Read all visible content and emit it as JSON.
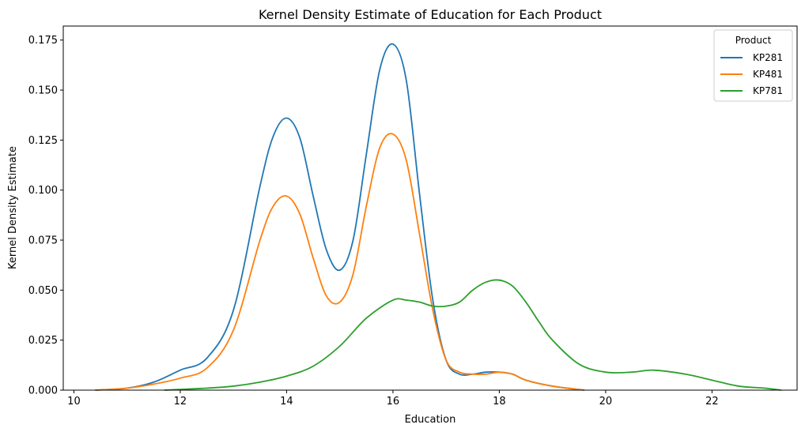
{
  "chart_data": {
    "type": "line",
    "title": "Kernel Density Estimate of Education for Each Product",
    "xlabel": "Education",
    "ylabel": "Kernel Density Estimate",
    "xlim": [
      9.8,
      23.6
    ],
    "ylim": [
      0,
      0.182
    ],
    "xticks": [
      10,
      12,
      14,
      16,
      18,
      20,
      22
    ],
    "xtick_labels": [
      "10",
      "12",
      "14",
      "16",
      "18",
      "20",
      "22"
    ],
    "yticks": [
      0,
      0.025,
      0.05,
      0.075,
      0.1,
      0.125,
      0.15,
      0.175
    ],
    "ytick_labels": [
      "0.000",
      "0.025",
      "0.050",
      "0.075",
      "0.100",
      "0.125",
      "0.150",
      "0.175"
    ],
    "grid": false,
    "legend": {
      "title": "Product",
      "placement": "top-right"
    },
    "series": [
      {
        "name": "KP281",
        "color": "#1f77b4",
        "x": [
          10.4,
          11.0,
          11.5,
          12.0,
          12.5,
          13.0,
          13.5,
          13.75,
          14.0,
          14.25,
          14.5,
          14.75,
          15.0,
          15.25,
          15.5,
          15.75,
          16.0,
          16.25,
          16.5,
          16.75,
          17.0,
          17.25,
          17.5,
          17.75,
          18.0,
          18.25,
          18.5,
          19.0,
          19.6
        ],
        "y": [
          0.0,
          0.001,
          0.004,
          0.01,
          0.016,
          0.04,
          0.102,
          0.127,
          0.136,
          0.126,
          0.097,
          0.07,
          0.06,
          0.075,
          0.118,
          0.16,
          0.173,
          0.155,
          0.098,
          0.045,
          0.015,
          0.008,
          0.008,
          0.009,
          0.009,
          0.008,
          0.005,
          0.002,
          0.0
        ]
      },
      {
        "name": "KP481",
        "color": "#ff7f0e",
        "x": [
          10.4,
          11.0,
          11.5,
          12.0,
          12.5,
          13.0,
          13.5,
          13.75,
          14.0,
          14.25,
          14.5,
          14.75,
          15.0,
          15.25,
          15.5,
          15.75,
          16.0,
          16.25,
          16.5,
          16.75,
          17.0,
          17.25,
          17.5,
          17.75,
          18.0,
          18.25,
          18.5,
          19.0,
          19.6
        ],
        "y": [
          0.0,
          0.001,
          0.003,
          0.006,
          0.011,
          0.03,
          0.075,
          0.092,
          0.097,
          0.088,
          0.066,
          0.047,
          0.044,
          0.058,
          0.092,
          0.121,
          0.128,
          0.115,
          0.078,
          0.04,
          0.015,
          0.009,
          0.008,
          0.008,
          0.009,
          0.008,
          0.005,
          0.002,
          0.0
        ]
      },
      {
        "name": "KP781",
        "color": "#2ca02c",
        "x": [
          11.7,
          12.5,
          13.0,
          13.5,
          14.0,
          14.5,
          15.0,
          15.5,
          16.0,
          16.25,
          16.5,
          16.75,
          17.0,
          17.25,
          17.5,
          17.75,
          18.0,
          18.25,
          18.5,
          18.75,
          19.0,
          19.5,
          20.0,
          20.5,
          20.9,
          21.5,
          22.0,
          22.5,
          23.0,
          23.3
        ],
        "y": [
          0.0,
          0.001,
          0.002,
          0.004,
          0.007,
          0.012,
          0.022,
          0.036,
          0.045,
          0.045,
          0.044,
          0.042,
          0.042,
          0.044,
          0.05,
          0.054,
          0.055,
          0.052,
          0.044,
          0.034,
          0.025,
          0.013,
          0.009,
          0.009,
          0.01,
          0.008,
          0.005,
          0.002,
          0.001,
          0.0
        ]
      }
    ]
  }
}
